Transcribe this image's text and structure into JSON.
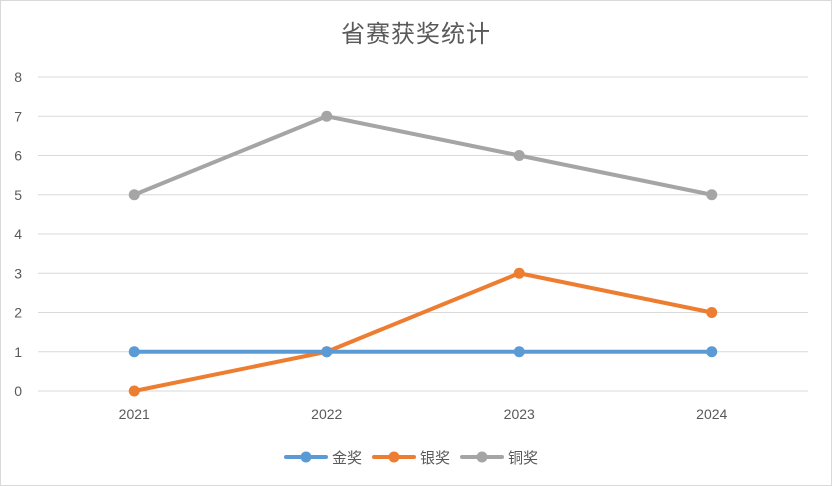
{
  "chart_data": {
    "type": "line",
    "title": "省赛获奖统计",
    "categories": [
      "2021",
      "2022",
      "2023",
      "2024"
    ],
    "series": [
      {
        "name": "金奖",
        "values": [
          1,
          1,
          1,
          1
        ],
        "color": "#5b9bd5"
      },
      {
        "name": "银奖",
        "values": [
          0,
          1,
          3,
          2
        ],
        "color": "#ed7d31"
      },
      {
        "name": "铜奖",
        "values": [
          5,
          7,
          6,
          5
        ],
        "color": "#a5a5a5"
      }
    ],
    "ylim": [
      0,
      8
    ],
    "yticks": [
      "0",
      "1",
      "2",
      "3",
      "4",
      "5",
      "6",
      "7",
      "8"
    ],
    "grid": true,
    "legend": "bottom",
    "xlabel": "",
    "ylabel": ""
  }
}
